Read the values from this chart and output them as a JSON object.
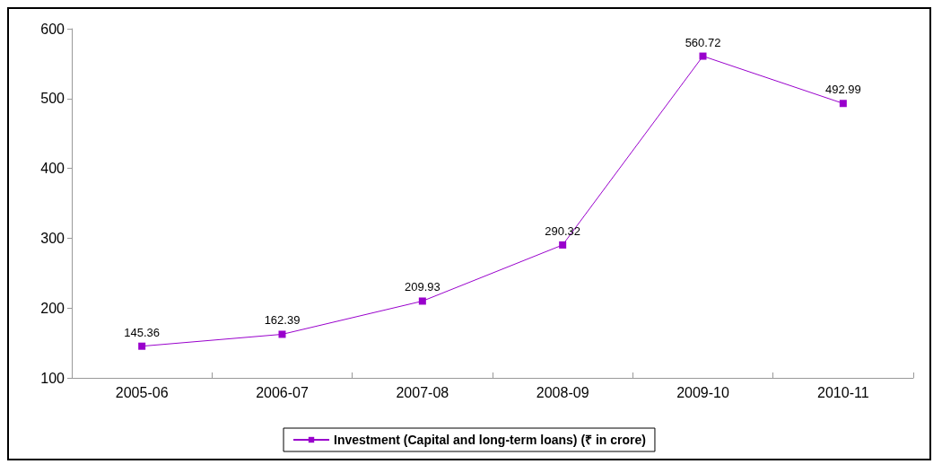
{
  "chart_data": {
    "type": "line",
    "categories": [
      "2005-06",
      "2006-07",
      "2007-08",
      "2008-09",
      "2009-10",
      "2010-11"
    ],
    "series": [
      {
        "name": "Investment (Capital and long-term loans) (₹ in crore)",
        "color": "#9900cc",
        "values": [
          145.36,
          162.39,
          209.93,
          290.32,
          560.72,
          492.99
        ]
      }
    ],
    "ylim": [
      100,
      600
    ],
    "yticks": [
      100,
      200,
      300,
      400,
      500,
      600
    ],
    "grid": false,
    "legend": "bottom",
    "marker": "square",
    "data_labels": true
  }
}
